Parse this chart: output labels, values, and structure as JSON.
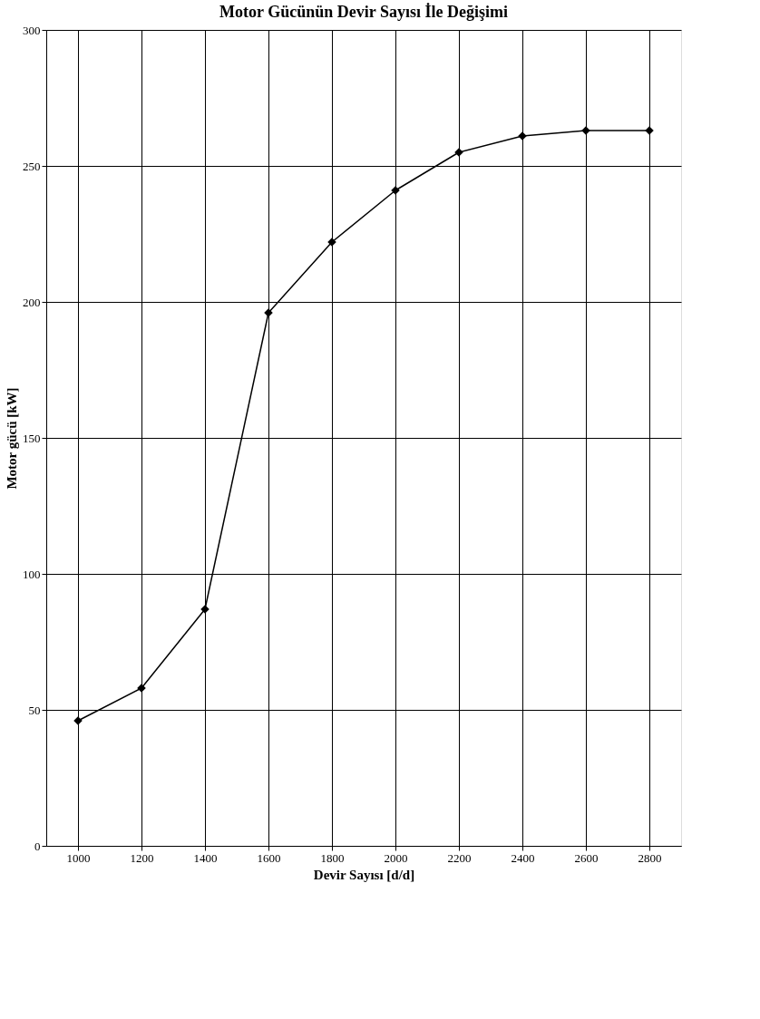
{
  "chart_data": {
    "type": "line",
    "title": "Motor Gücünün Devir Sayısı İle Değişimi",
    "xlabel": "Devir Sayısı [d/d]",
    "ylabel": "Motor gücü [kW]",
    "categories": [
      "1000",
      "1200",
      "1400",
      "1600",
      "1800",
      "2000",
      "2200",
      "2400",
      "2600",
      "2800"
    ],
    "series": [
      {
        "color": "#000000",
        "values": [
          46,
          58,
          87,
          196,
          222,
          241,
          255,
          261,
          263,
          263
        ]
      }
    ],
    "ylim": [
      0,
      300
    ],
    "yticks": [
      0,
      50,
      100,
      150,
      200,
      250,
      300
    ],
    "grid": true,
    "marker": "diamond",
    "line_style": "solid"
  }
}
